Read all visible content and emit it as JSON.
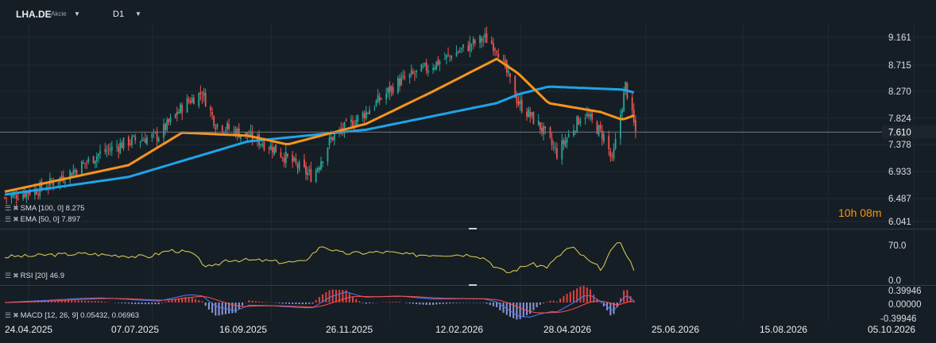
{
  "header": {
    "symbol": "LHA.DE",
    "type": "Akcie",
    "timeframe": "D1"
  },
  "countdown": "10h 08m",
  "legend": {
    "sma": "SMA [100, 0] 8.275",
    "ema": "EMA [50, 0] 7.897",
    "rsi": "RSI [20] 46.9",
    "macd": "MACD [12, 26, 9] 0.05432, 0.06963"
  },
  "colors": {
    "bg": "#161e25",
    "up": "#26a69a",
    "down": "#ef5350",
    "sma": "#1ea4e9",
    "ema": "#f7941d",
    "rsi": "#e0d256",
    "macd_line": "#4f7bff",
    "signal_line": "#ff4d4d",
    "hist_pos": "#e3413f",
    "hist_neg": "#8f95d6"
  },
  "current_price": {
    "label": "7.610",
    "value": 7.61
  },
  "chart_data": [
    {
      "type": "candlestick",
      "title": "LHA.DE D1",
      "ylim": [
        6.041,
        9.35
      ],
      "price_ticks": [
        "9.161",
        "8.715",
        "8.270",
        "7.824",
        "7.378",
        "6.933",
        "6.487",
        "6.041"
      ],
      "x_ticks": [
        "24.04.2025",
        "07.07.2025",
        "16.09.2025",
        "26.11.2025",
        "12.02.2026",
        "28.04.2026",
        "25.06.2026",
        "15.08.2026",
        "05.10.2026"
      ],
      "close_anchors": [
        {
          "date": "24.04.2025",
          "close": 6.5
        },
        {
          "date": "15.05.2025",
          "close": 6.65
        },
        {
          "date": "01.06.2025",
          "close": 6.9
        },
        {
          "date": "20.06.2025",
          "close": 7.25
        },
        {
          "date": "07.07.2025",
          "close": 7.45
        },
        {
          "date": "25.07.2025",
          "close": 7.55
        },
        {
          "date": "10.08.2025",
          "close": 8.1
        },
        {
          "date": "20.08.2025",
          "close": 8.28
        },
        {
          "date": "28.08.2025",
          "close": 7.75
        },
        {
          "date": "16.09.2025",
          "close": 7.55
        },
        {
          "date": "01.10.2025",
          "close": 7.35
        },
        {
          "date": "15.10.2025",
          "close": 7.05
        },
        {
          "date": "25.10.2025",
          "close": 6.85
        },
        {
          "date": "05.11.2025",
          "close": 7.5
        },
        {
          "date": "26.11.2025",
          "close": 7.95
        },
        {
          "date": "15.12.2025",
          "close": 8.45
        },
        {
          "date": "05.01.2026",
          "close": 8.75
        },
        {
          "date": "25.01.2026",
          "close": 9.05
        },
        {
          "date": "05.02.2026",
          "close": 9.2
        },
        {
          "date": "12.02.2026",
          "close": 9.05
        },
        {
          "date": "25.02.2026",
          "close": 8.1
        },
        {
          "date": "10.03.2026",
          "close": 7.7
        },
        {
          "date": "20.03.2026",
          "close": 7.25
        },
        {
          "date": "05.04.2026",
          "close": 7.95
        },
        {
          "date": "18.04.2026",
          "close": 7.5
        },
        {
          "date": "22.04.2026",
          "close": 7.1
        },
        {
          "date": "30.04.2026",
          "close": 8.4
        },
        {
          "date": "06.05.2026",
          "close": 7.61
        }
      ],
      "sma_100": [
        {
          "date": "24.04.2025",
          "value": 6.55
        },
        {
          "date": "07.07.2025",
          "value": 6.85
        },
        {
          "date": "16.09.2025",
          "value": 7.45
        },
        {
          "date": "26.11.2025",
          "value": 7.65
        },
        {
          "date": "12.02.2026",
          "value": 8.1
        },
        {
          "date": "25.02.2026",
          "value": 8.25
        },
        {
          "date": "15.03.2026",
          "value": 8.38
        },
        {
          "date": "28.04.2026",
          "value": 8.33
        },
        {
          "date": "06.05.2026",
          "value": 8.275
        }
      ],
      "ema_50": [
        {
          "date": "24.04.2025",
          "value": 6.6
        },
        {
          "date": "07.07.2025",
          "value": 7.05
        },
        {
          "date": "08.08.2025",
          "value": 7.6
        },
        {
          "date": "16.09.2025",
          "value": 7.55
        },
        {
          "date": "10.10.2025",
          "value": 7.4
        },
        {
          "date": "26.11.2025",
          "value": 7.75
        },
        {
          "date": "05.01.2026",
          "value": 8.3
        },
        {
          "date": "12.02.2026",
          "value": 8.85
        },
        {
          "date": "25.02.2026",
          "value": 8.6
        },
        {
          "date": "15.03.2026",
          "value": 8.1
        },
        {
          "date": "15.04.2026",
          "value": 7.95
        },
        {
          "date": "28.04.2026",
          "value": 7.82
        },
        {
          "date": "06.05.2026",
          "value": 7.897
        }
      ]
    },
    {
      "type": "line",
      "title": "RSI [20]",
      "y_ticks": [
        "70.0",
        "0.0"
      ],
      "ylim": [
        0,
        70
      ],
      "values_note_free": true,
      "current": 46.9
    },
    {
      "type": "bar",
      "title": "MACD [12, 26, 9]",
      "y_ticks": [
        "0.39946",
        "0.00000",
        "-0.39946"
      ],
      "ylim": [
        -0.39946,
        0.39946
      ],
      "macd": 0.05432,
      "signal": 0.06963
    }
  ]
}
